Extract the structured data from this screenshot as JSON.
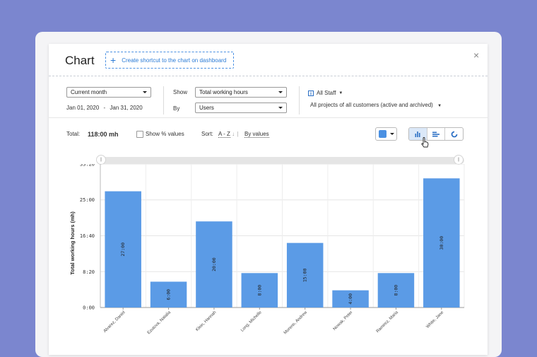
{
  "dialog": {
    "title": "Chart",
    "shortcut_label": "Create shortcut to the chart on dashboard",
    "close_symbol": "×"
  },
  "filters": {
    "period_select": "Current month",
    "date_from": "Jan 01, 2020",
    "date_separator": "-",
    "date_to": "Jan 31, 2020",
    "show_label": "Show",
    "show_select": "Total working hours",
    "by_label": "By",
    "by_select": "Users",
    "staff_label": "All Staff",
    "projects_label": "All projects of all customers (active and archived)"
  },
  "toolbar": {
    "total_label": "Total:",
    "total_value": "118:00 mh",
    "show_percent_label": "Show % values",
    "sort_label": "Sort:",
    "sort_az": "A - Z",
    "sort_sep": "|",
    "sort_by_values": "By values",
    "series_color": "#4a90e2"
  },
  "chart_data": {
    "type": "bar",
    "ylabel": "Total working hours (mh)",
    "xlabel": "",
    "categories": [
      "Alvarez, Daniel",
      "Ezutova, Natalia",
      "Klein, Hannah",
      "Long, Michelle",
      "Moreno, Andrew",
      "Nowak, Peter",
      "Ramirez, Maria",
      "White, Jane"
    ],
    "values": [
      27,
      6,
      20,
      8,
      15,
      4,
      8,
      30
    ],
    "data_labels": [
      "27:00",
      "6:00",
      "20:00",
      "8:00",
      "15:00",
      "4:00",
      "8:00",
      "30:00"
    ],
    "yticks": [
      0,
      8.333,
      16.667,
      25,
      33.333
    ],
    "ytick_labels": [
      "0:00",
      "8:20",
      "16:40",
      "25:00",
      "33:20"
    ],
    "ylim": [
      0,
      33.333
    ],
    "grid": true,
    "bar_color": "#5b9be6"
  }
}
